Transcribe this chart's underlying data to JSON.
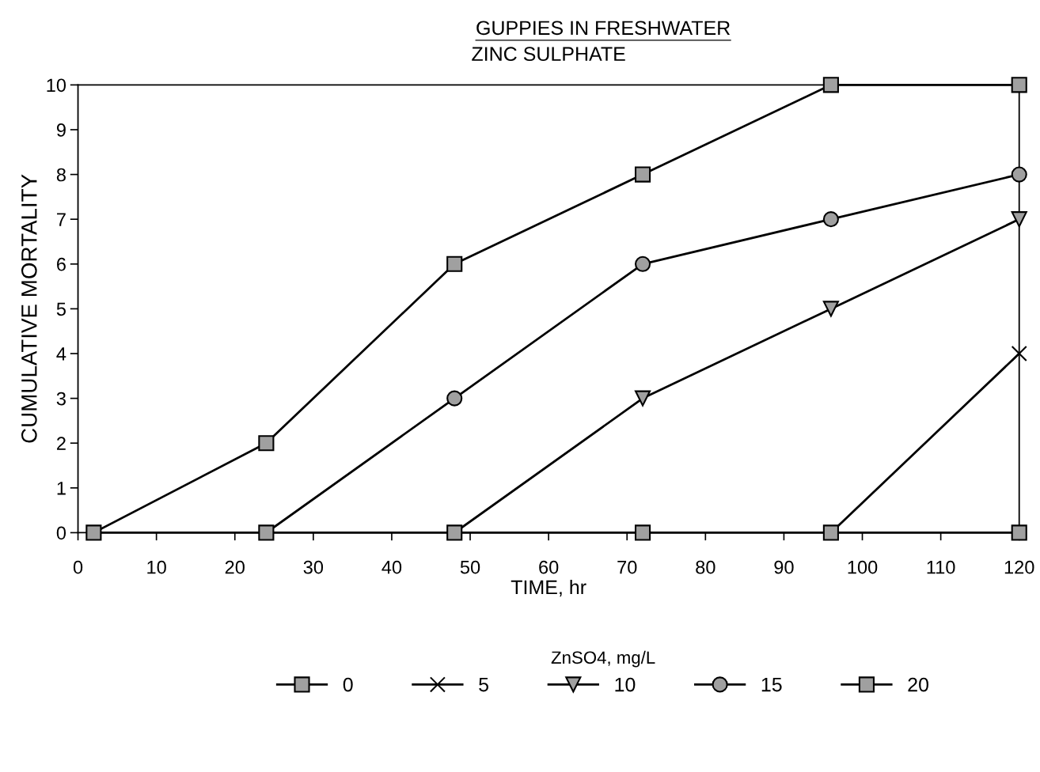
{
  "chart_data": {
    "type": "line",
    "title": "GUPPIES IN FRESHWATER",
    "subtitle": "ZINC SULPHATE",
    "xlabel": "TIME, hr",
    "ylabel": "CUMULATIVE MORTALITY",
    "legend_title": "ZnSO4, mg/L",
    "x": [
      2,
      24,
      48,
      72,
      96,
      120
    ],
    "series": [
      {
        "name": "0",
        "color": "#000000",
        "marker": "square",
        "values": [
          0,
          0,
          0,
          0,
          0,
          0
        ]
      },
      {
        "name": "5",
        "color": "#000000",
        "marker": "cross",
        "values": [
          null,
          null,
          null,
          null,
          0,
          4
        ]
      },
      {
        "name": "10",
        "color": "#000000",
        "marker": "triangle",
        "values": [
          null,
          null,
          0,
          3,
          5,
          7
        ]
      },
      {
        "name": "15",
        "color": "#000000",
        "marker": "circle",
        "values": [
          null,
          0,
          3,
          6,
          7,
          8
        ]
      },
      {
        "name": "20",
        "color": "#000000",
        "marker": "square",
        "values": [
          0,
          2,
          6,
          8,
          10,
          10
        ]
      }
    ],
    "xlim": [
      0,
      120
    ],
    "xticks": [
      0,
      10,
      20,
      30,
      40,
      50,
      60,
      70,
      80,
      90,
      100,
      110,
      120
    ],
    "ylim": [
      0,
      10
    ],
    "yticks": [
      0,
      1,
      2,
      3,
      4,
      5,
      6,
      7,
      8,
      9,
      10
    ],
    "grid": false,
    "legend": "bottom",
    "line_style": "solid"
  }
}
